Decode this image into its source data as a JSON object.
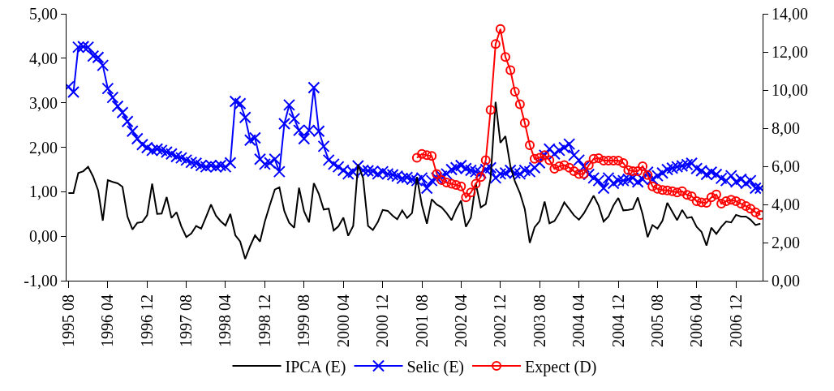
{
  "chart_data": {
    "type": "line",
    "x": [
      "1995-08",
      "1995-09",
      "1995-10",
      "1995-11",
      "1995-12",
      "1996-01",
      "1996-02",
      "1996-03",
      "1996-04",
      "1996-05",
      "1996-06",
      "1996-07",
      "1996-08",
      "1996-09",
      "1996-10",
      "1996-11",
      "1996-12",
      "1997-01",
      "1997-02",
      "1997-03",
      "1997-04",
      "1997-05",
      "1997-06",
      "1997-07",
      "1997-08",
      "1997-09",
      "1997-10",
      "1997-11",
      "1997-12",
      "1998-01",
      "1998-02",
      "1998-03",
      "1998-04",
      "1998-05",
      "1998-06",
      "1998-07",
      "1998-08",
      "1998-09",
      "1998-10",
      "1998-11",
      "1998-12",
      "1999-01",
      "1999-02",
      "1999-03",
      "1999-04",
      "1999-05",
      "1999-06",
      "1999-07",
      "1999-08",
      "1999-09",
      "1999-10",
      "1999-11",
      "1999-12",
      "2000-01",
      "2000-02",
      "2000-03",
      "2000-04",
      "2000-05",
      "2000-06",
      "2000-07",
      "2000-08",
      "2000-09",
      "2000-10",
      "2000-11",
      "2000-12",
      "2001-01",
      "2001-02",
      "2001-03",
      "2001-04",
      "2001-05",
      "2001-06",
      "2001-07",
      "2001-08",
      "2001-09",
      "2001-10",
      "2001-11",
      "2001-12",
      "2002-01",
      "2002-02",
      "2002-03",
      "2002-04",
      "2002-05",
      "2002-06",
      "2002-07",
      "2002-08",
      "2002-09",
      "2002-10",
      "2002-11",
      "2002-12",
      "2003-01",
      "2003-02",
      "2003-03",
      "2003-04",
      "2003-05",
      "2003-06",
      "2003-07",
      "2003-08",
      "2003-09",
      "2003-10",
      "2003-11",
      "2003-12",
      "2004-01",
      "2004-02",
      "2004-03",
      "2004-04",
      "2004-05",
      "2004-06",
      "2004-07",
      "2004-08",
      "2004-09",
      "2004-10",
      "2004-11",
      "2004-12",
      "2005-01",
      "2005-02",
      "2005-03",
      "2005-04",
      "2005-05",
      "2005-06",
      "2005-07",
      "2005-08",
      "2005-09",
      "2005-10",
      "2005-11",
      "2005-12",
      "2006-01",
      "2006-02",
      "2006-03",
      "2006-04",
      "2006-05",
      "2006-06",
      "2006-07",
      "2006-08",
      "2006-09",
      "2006-10",
      "2006-11",
      "2006-12",
      "2007-01",
      "2007-02",
      "2007-03",
      "2007-04",
      "2007-05"
    ],
    "series": [
      {
        "name": "IPCA (E)",
        "color": "#000000",
        "marker": "none",
        "values": [
          0.97,
          0.97,
          1.42,
          1.46,
          1.56,
          1.34,
          1.03,
          0.35,
          1.26,
          1.22,
          1.19,
          1.11,
          0.44,
          0.15,
          0.3,
          0.32,
          0.47,
          1.18,
          0.5,
          0.51,
          0.88,
          0.41,
          0.54,
          0.22,
          -0.02,
          0.06,
          0.23,
          0.17,
          0.43,
          0.71,
          0.46,
          0.34,
          0.24,
          0.5,
          0.02,
          -0.12,
          -0.51,
          -0.22,
          0.02,
          -0.12,
          0.33,
          0.7,
          1.05,
          1.1,
          0.56,
          0.3,
          0.19,
          1.09,
          0.56,
          0.31,
          1.19,
          0.95,
          0.6,
          0.62,
          0.13,
          0.22,
          0.42,
          0.01,
          0.23,
          1.61,
          1.31,
          0.23,
          0.14,
          0.32,
          0.59,
          0.57,
          0.46,
          0.38,
          0.58,
          0.41,
          0.52,
          1.33,
          0.7,
          0.28,
          0.83,
          0.71,
          0.65,
          0.52,
          0.36,
          0.6,
          0.8,
          0.21,
          0.42,
          1.19,
          0.65,
          0.72,
          1.31,
          3.02,
          2.1,
          2.25,
          1.57,
          1.23,
          0.97,
          0.61,
          -0.15,
          0.2,
          0.34,
          0.78,
          0.29,
          0.34,
          0.52,
          0.76,
          0.61,
          0.47,
          0.37,
          0.51,
          0.71,
          0.91,
          0.69,
          0.33,
          0.44,
          0.69,
          0.86,
          0.58,
          0.59,
          0.61,
          0.87,
          0.49,
          -0.02,
          0.25,
          0.17,
          0.35,
          0.75,
          0.55,
          0.36,
          0.59,
          0.41,
          0.43,
          0.21,
          0.1,
          -0.21,
          0.19,
          0.05,
          0.21,
          0.33,
          0.31,
          0.48,
          0.44,
          0.44,
          0.37,
          0.25,
          0.28
        ]
      },
      {
        "name": "Selic (E)",
        "color": "#0000ff",
        "marker": "cross",
        "values": [
          3.36,
          3.24,
          4.25,
          4.26,
          4.25,
          4.05,
          4.02,
          3.84,
          3.32,
          3.12,
          2.92,
          2.78,
          2.58,
          2.36,
          2.19,
          2.06,
          1.99,
          1.93,
          1.96,
          1.93,
          1.89,
          1.85,
          1.79,
          1.76,
          1.71,
          1.66,
          1.64,
          1.59,
          1.56,
          1.59,
          1.56,
          1.59,
          1.56,
          1.65,
          3.03,
          2.98,
          2.67,
          2.16,
          2.21,
          1.73,
          1.62,
          1.65,
          1.73,
          1.45,
          2.53,
          2.95,
          2.64,
          2.38,
          2.19,
          2.38,
          3.34,
          2.36,
          2.02,
          1.71,
          1.62,
          1.56,
          1.48,
          1.4,
          1.44,
          1.58,
          1.48,
          1.47,
          1.46,
          1.4,
          1.45,
          1.4,
          1.38,
          1.35,
          1.3,
          1.32,
          1.28,
          1.25,
          1.31,
          1.08,
          1.25,
          1.31,
          1.35,
          1.4,
          1.5,
          1.54,
          1.59,
          1.52,
          1.48,
          1.45,
          1.42,
          1.5,
          1.54,
          1.31,
          1.4,
          1.42,
          1.48,
          1.42,
          1.4,
          1.48,
          1.45,
          1.54,
          1.65,
          1.82,
          1.96,
          1.85,
          1.93,
          1.99,
          2.07,
          1.82,
          1.71,
          1.56,
          1.39,
          1.31,
          1.25,
          1.08,
          1.31,
          1.19,
          1.25,
          1.25,
          1.28,
          1.31,
          1.22,
          1.28,
          1.44,
          1.28,
          1.36,
          1.42,
          1.5,
          1.53,
          1.56,
          1.58,
          1.61,
          1.64,
          1.52,
          1.47,
          1.39,
          1.44,
          1.39,
          1.3,
          1.25,
          1.36,
          1.22,
          1.28,
          1.19,
          1.25,
          1.08,
          1.08
        ]
      },
      {
        "name": "Expect (D)",
        "color": "#ff0000",
        "marker": "circle",
        "axis": "y2",
        "values": [
          null,
          null,
          null,
          null,
          null,
          null,
          null,
          null,
          null,
          null,
          null,
          null,
          null,
          null,
          null,
          null,
          null,
          null,
          null,
          null,
          null,
          null,
          null,
          null,
          null,
          null,
          null,
          null,
          null,
          null,
          null,
          null,
          null,
          null,
          null,
          null,
          null,
          null,
          null,
          null,
          null,
          null,
          null,
          null,
          null,
          null,
          null,
          null,
          null,
          null,
          null,
          null,
          null,
          null,
          null,
          null,
          null,
          null,
          null,
          null,
          null,
          null,
          null,
          null,
          null,
          null,
          null,
          null,
          null,
          null,
          null,
          6.45,
          6.65,
          6.58,
          6.54,
          5.6,
          5.28,
          5.15,
          5.08,
          5.02,
          4.95,
          4.37,
          4.63,
          5.08,
          5.44,
          6.32,
          8.96,
          12.41,
          13.2,
          11.73,
          11.04,
          9.91,
          9.26,
          8.28,
          7.11,
          6.39,
          6.45,
          6.58,
          6.32,
          5.87,
          6.0,
          6.06,
          5.93,
          5.74,
          5.6,
          5.6,
          6.06,
          6.39,
          6.43,
          6.3,
          6.3,
          6.3,
          6.3,
          6.17,
          5.8,
          5.74,
          5.74,
          6.0,
          5.54,
          4.95,
          4.82,
          4.76,
          4.73,
          4.69,
          4.63,
          4.69,
          4.5,
          4.43,
          4.17,
          4.11,
          4.08,
          4.37,
          4.52,
          4.04,
          4.17,
          4.24,
          4.17,
          4.04,
          3.91,
          3.78,
          3.59,
          3.45
        ]
      }
    ],
    "xlim": [
      "1995-07-20",
      "2007-05-15"
    ],
    "xticks": [
      {
        "value": "1995-08",
        "label": "1995 08"
      },
      {
        "value": "1996-04",
        "label": "1996 04"
      },
      {
        "value": "1996-12",
        "label": "1996 12"
      },
      {
        "value": "1997-08",
        "label": "1997 08"
      },
      {
        "value": "1998-04",
        "label": "1998 04"
      },
      {
        "value": "1998-12",
        "label": "1998 12"
      },
      {
        "value": "1999-08",
        "label": "1999 08"
      },
      {
        "value": "2000-04",
        "label": "2000 04"
      },
      {
        "value": "2000-12",
        "label": "2000 12"
      },
      {
        "value": "2001-08",
        "label": "2001 08"
      },
      {
        "value": "2002-04",
        "label": "2002 04"
      },
      {
        "value": "2002-12",
        "label": "2002 12"
      },
      {
        "value": "2003-08",
        "label": "2003 08"
      },
      {
        "value": "2004-04",
        "label": "2004 04"
      },
      {
        "value": "2004-12",
        "label": "2004 12"
      },
      {
        "value": "2005-08",
        "label": "2005 08"
      },
      {
        "value": "2006-04",
        "label": "2006 04"
      },
      {
        "value": "2006-12",
        "label": "2006 12"
      }
    ],
    "ylim": [
      -1,
      5
    ],
    "yticks": [
      {
        "value": -1,
        "label": "-1,00"
      },
      {
        "value": 0,
        "label": "0,00"
      },
      {
        "value": 1,
        "label": "1,00"
      },
      {
        "value": 2,
        "label": "2,00"
      },
      {
        "value": 3,
        "label": "3,00"
      },
      {
        "value": 4,
        "label": "4,00"
      },
      {
        "value": 5,
        "label": "5,00"
      }
    ],
    "y2lim": [
      0,
      14
    ],
    "y2ticks": [
      {
        "value": 0,
        "label": "0,00"
      },
      {
        "value": 2,
        "label": "2,00"
      },
      {
        "value": 4,
        "label": "4,00"
      },
      {
        "value": 6,
        "label": "6,00"
      },
      {
        "value": 8,
        "label": "8,00"
      },
      {
        "value": 10,
        "label": "10,00"
      },
      {
        "value": 12,
        "label": "12,00"
      },
      {
        "value": 14,
        "label": "14,00"
      }
    ],
    "grid": false,
    "legend": "bottom"
  }
}
